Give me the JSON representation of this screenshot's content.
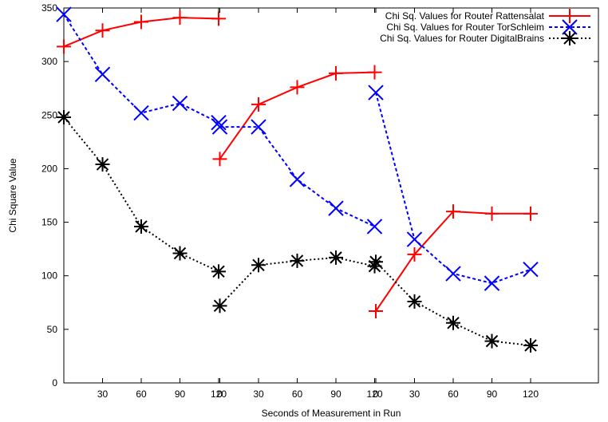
{
  "chart_data": {
    "type": "line",
    "title": "",
    "xlabel": "Seconds of Measurement in Run",
    "ylabel": "Chi Square Value",
    "ylim": [
      0,
      350
    ],
    "yticks": [
      "0",
      "50",
      "100",
      "150",
      "200",
      "250",
      "300",
      "350"
    ],
    "x_tick_labels": [
      "30",
      "60",
      "90",
      "120",
      "0",
      "30",
      "60",
      "90",
      "120",
      "0",
      "30",
      "60",
      "90",
      "120"
    ],
    "grid": false,
    "legend_position": "top-right",
    "runs": 3,
    "series": [
      {
        "name": "Chi Sq. Values for Router Rattensalat",
        "color": "#ff0000",
        "marker": "plus",
        "line": "solid",
        "segments": [
          [
            [
              0,
              314
            ],
            [
              30,
              329
            ],
            [
              60,
              337
            ],
            [
              90,
              341
            ],
            [
              120,
              340
            ]
          ],
          [
            [
              0,
              209
            ],
            [
              30,
              260
            ],
            [
              60,
              276
            ],
            [
              90,
              289
            ],
            [
              120,
              290
            ]
          ],
          [
            [
              0,
              67
            ],
            [
              30,
              120
            ],
            [
              60,
              160
            ],
            [
              90,
              158
            ],
            [
              120,
              158
            ]
          ]
        ]
      },
      {
        "name": "Chi Sq. Values for Router TorSchleim",
        "color": "#0000ff",
        "marker": "x",
        "line": "dashed",
        "segments": [
          [
            [
              0,
              344
            ],
            [
              30,
              288
            ],
            [
              60,
              252
            ],
            [
              90,
              261
            ],
            [
              120,
              243
            ]
          ],
          [
            [
              0,
              239
            ],
            [
              30,
              239
            ],
            [
              60,
              190
            ],
            [
              90,
              163
            ],
            [
              120,
              146
            ]
          ],
          [
            [
              0,
              271
            ],
            [
              30,
              134
            ],
            [
              60,
              102
            ],
            [
              90,
              93
            ],
            [
              120,
              106
            ]
          ]
        ]
      },
      {
        "name": "Chi Sq. Values for Router DigitalBrains",
        "color": "#000000",
        "marker": "star",
        "line": "dotted",
        "segments": [
          [
            [
              0,
              248
            ],
            [
              30,
              204
            ],
            [
              60,
              146
            ],
            [
              90,
              121
            ],
            [
              120,
              104
            ]
          ],
          [
            [
              0,
              72
            ],
            [
              30,
              110
            ],
            [
              60,
              114
            ],
            [
              90,
              117
            ],
            [
              120,
              109
            ]
          ],
          [
            [
              0,
              113
            ],
            [
              30,
              76
            ],
            [
              60,
              56
            ],
            [
              90,
              39
            ],
            [
              120,
              35
            ]
          ]
        ]
      }
    ]
  }
}
